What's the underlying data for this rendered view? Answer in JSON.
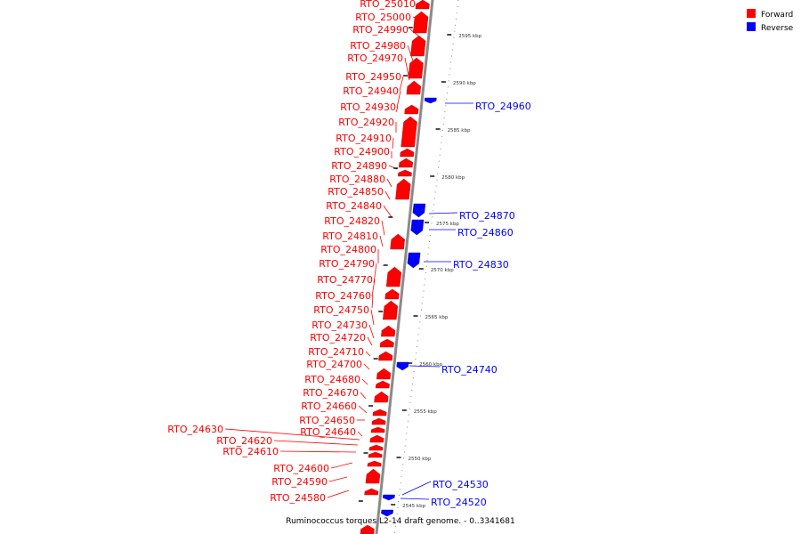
{
  "caption": "Ruminococcus torques L2-14 draft genome. - 0..3341681",
  "legend": [
    {
      "label": "Forward",
      "color": "#ff0000"
    },
    {
      "label": "Reverse",
      "color": "#0000ff"
    }
  ],
  "colors": {
    "forward": "#ff0000",
    "reverse": "#0000ff",
    "backbone": "#8a8a8a"
  },
  "scale_labels": [
    "2595 kbp",
    "2590 kbp",
    "2585 kbp",
    "2580 kbp",
    "2575 kbp",
    "2570 kbp",
    "2565 kbp",
    "2560 kbp",
    "2555 kbp",
    "2550 kbp",
    "2545 kbp"
  ],
  "forward_genes": [
    "RTO_25010",
    "RTO_25000",
    "RTO_24990",
    "RTO_24980",
    "RTO_24970",
    "RTO_24950",
    "RTO_24940",
    "RTO_24930",
    "RTO_24920",
    "RTO_24910",
    "RTO_24900",
    "RTO_24890",
    "RTO_24880",
    "RTO_24850",
    "RTO_24840",
    "RTO_24820",
    "RTO_24810",
    "RTO_24800",
    "RTO_24790",
    "RTO_24770",
    "RTO_24760",
    "RTO_24750",
    "RTO_24730",
    "RTO_24720",
    "RTO_24710",
    "RTO_24700",
    "RTO_24680",
    "RTO_24670",
    "RTO_24660",
    "RTO_24650",
    "RTO_24640",
    "RTO_24630",
    "RTO_24620",
    "RTO_24610",
    "RTO_24600",
    "RTO_24590",
    "RTO_24580"
  ],
  "reverse_genes": [
    "RTO_24960",
    "RTO_24870",
    "RTO_24860",
    "RTO_24830",
    "RTO_24740",
    "RTO_24530",
    "RTO_24520"
  ]
}
